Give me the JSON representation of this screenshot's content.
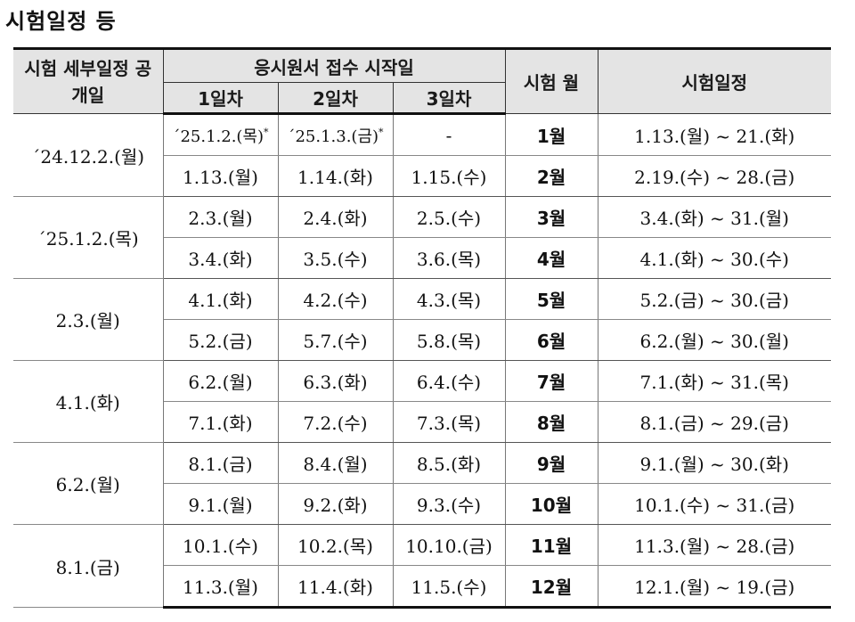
{
  "title": "시험일정 등",
  "header": {
    "col_release": "시험 세부일정 공개일",
    "col_apply": "응시원서 접수 시작일",
    "day1": "1일차",
    "day2": "2일차",
    "day3": "3일차",
    "col_month": "시험 월",
    "col_schedule": "시험일정"
  },
  "groups": [
    {
      "release": "´24.12.2.(월)",
      "rows": [
        {
          "d1": "´25.1.2.(목)*",
          "d2": "´25.1.3.(금)*",
          "d3": "-",
          "month": "1월",
          "schedule": "1.13.(월) ~ 21.(화)"
        },
        {
          "d1": "1.13.(월)",
          "d2": "1.14.(화)",
          "d3": "1.15.(수)",
          "month": "2월",
          "schedule": "2.19.(수) ~ 28.(금)"
        }
      ]
    },
    {
      "release": "´25.1.2.(목)",
      "rows": [
        {
          "d1": "2.3.(월)",
          "d2": "2.4.(화)",
          "d3": "2.5.(수)",
          "month": "3월",
          "schedule": "3.4.(화) ~ 31.(월)"
        },
        {
          "d1": "3.4.(화)",
          "d2": "3.5.(수)",
          "d3": "3.6.(목)",
          "month": "4월",
          "schedule": "4.1.(화) ~ 30.(수)"
        }
      ]
    },
    {
      "release": "2.3.(월)",
      "rows": [
        {
          "d1": "4.1.(화)",
          "d2": "4.2.(수)",
          "d3": "4.3.(목)",
          "month": "5월",
          "schedule": "5.2.(금) ~ 30.(금)"
        },
        {
          "d1": "5.2.(금)",
          "d2": "5.7.(수)",
          "d3": "5.8.(목)",
          "month": "6월",
          "schedule": "6.2.(월) ~ 30.(월)"
        }
      ]
    },
    {
      "release": "4.1.(화)",
      "rows": [
        {
          "d1": "6.2.(월)",
          "d2": "6.3.(화)",
          "d3": "6.4.(수)",
          "month": "7월",
          "schedule": "7.1.(화) ~ 31.(목)"
        },
        {
          "d1": "7.1.(화)",
          "d2": "7.2.(수)",
          "d3": "7.3.(목)",
          "month": "8월",
          "schedule": "8.1.(금) ~ 29.(금)"
        }
      ]
    },
    {
      "release": "6.2.(월)",
      "rows": [
        {
          "d1": "8.1.(금)",
          "d2": "8.4.(월)",
          "d3": "8.5.(화)",
          "month": "9월",
          "schedule": "9.1.(월) ~ 30.(화)"
        },
        {
          "d1": "9.1.(월)",
          "d2": "9.2.(화)",
          "d3": "9.3.(수)",
          "month": "10월",
          "schedule": "10.1.(수) ~ 31.(금)"
        }
      ]
    },
    {
      "release": "8.1.(금)",
      "rows": [
        {
          "d1": "10.1.(수)",
          "d2": "10.2.(목)",
          "d3": "10.10.(금)",
          "month": "11월",
          "schedule": "11.3.(월) ~ 28.(금)"
        },
        {
          "d1": "11.3.(월)",
          "d2": "11.4.(화)",
          "d3": "11.5.(수)",
          "month": "12월",
          "schedule": "12.1.(월) ~ 19.(금)"
        }
      ]
    }
  ]
}
